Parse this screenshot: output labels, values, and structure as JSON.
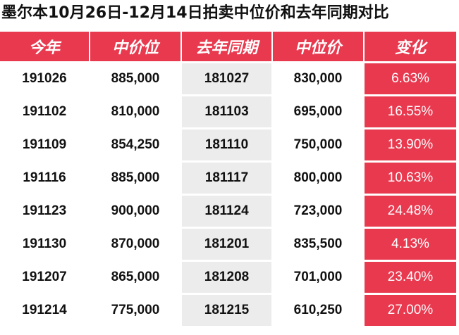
{
  "title": "墨尔本10月26日-12月14日拍卖中位价和去年同期对比",
  "headers": [
    "今年",
    "中价位",
    "去年同期",
    "中位价",
    "变化"
  ],
  "rows": [
    [
      "191026",
      "885,000",
      "181027",
      "830,000",
      "6.63%"
    ],
    [
      "191102",
      "810,000",
      "181103",
      "695,000",
      "16.55%"
    ],
    [
      "191109",
      "854,250",
      "181110",
      "750,000",
      "13.90%"
    ],
    [
      "191116",
      "885,000",
      "181117",
      "800,000",
      "10.63%"
    ],
    [
      "191123",
      "900,000",
      "181124",
      "723,000",
      "24.48%"
    ],
    [
      "191130",
      "870,000",
      "181201",
      "835,500",
      "4.13%"
    ],
    [
      "191207",
      "865,000",
      "181208",
      "701,000",
      "23.40%"
    ],
    [
      "191214",
      "775,000",
      "181215",
      "610,250",
      "27.00%"
    ]
  ],
  "colors": {
    "accent_red": "#e8394f",
    "stripe_gray": "#ececec",
    "text": "#111111"
  }
}
